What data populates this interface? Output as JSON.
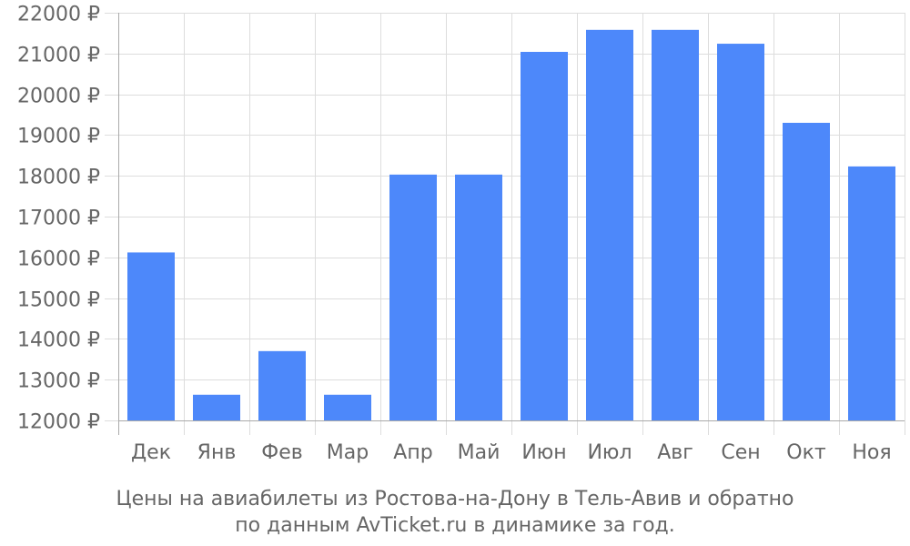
{
  "chart_data": {
    "type": "bar",
    "categories": [
      "Дек",
      "Янв",
      "Фев",
      "Мар",
      "Апр",
      "Май",
      "Июн",
      "Июл",
      "Авг",
      "Сен",
      "Окт",
      "Ноя"
    ],
    "values": [
      16120,
      12630,
      13700,
      12630,
      18030,
      18030,
      21040,
      21580,
      21580,
      21240,
      19300,
      18230
    ],
    "ylim": [
      12000,
      22000
    ],
    "yticks": [
      12000,
      13000,
      14000,
      15000,
      16000,
      17000,
      18000,
      19000,
      20000,
      21000,
      22000
    ],
    "ytick_labels": [
      "12000 ₽",
      "13000 ₽",
      "14000 ₽",
      "15000 ₽",
      "16000 ₽",
      "17000 ₽",
      "18000 ₽",
      "19000 ₽",
      "20000 ₽",
      "21000 ₽",
      "22000 ₽"
    ],
    "xlabel": "",
    "ylabel": "",
    "grid": true,
    "bar_color": "#4d88fa",
    "grid_color": "#dddddd",
    "axis_color": "#aaaaaa",
    "text_color": "#666666"
  },
  "caption": {
    "line1": "Цены на авиабилеты из Ростова-на-Дону в Тель-Авив и обратно",
    "line2": "по данным AvTicket.ru в динамике за год."
  }
}
